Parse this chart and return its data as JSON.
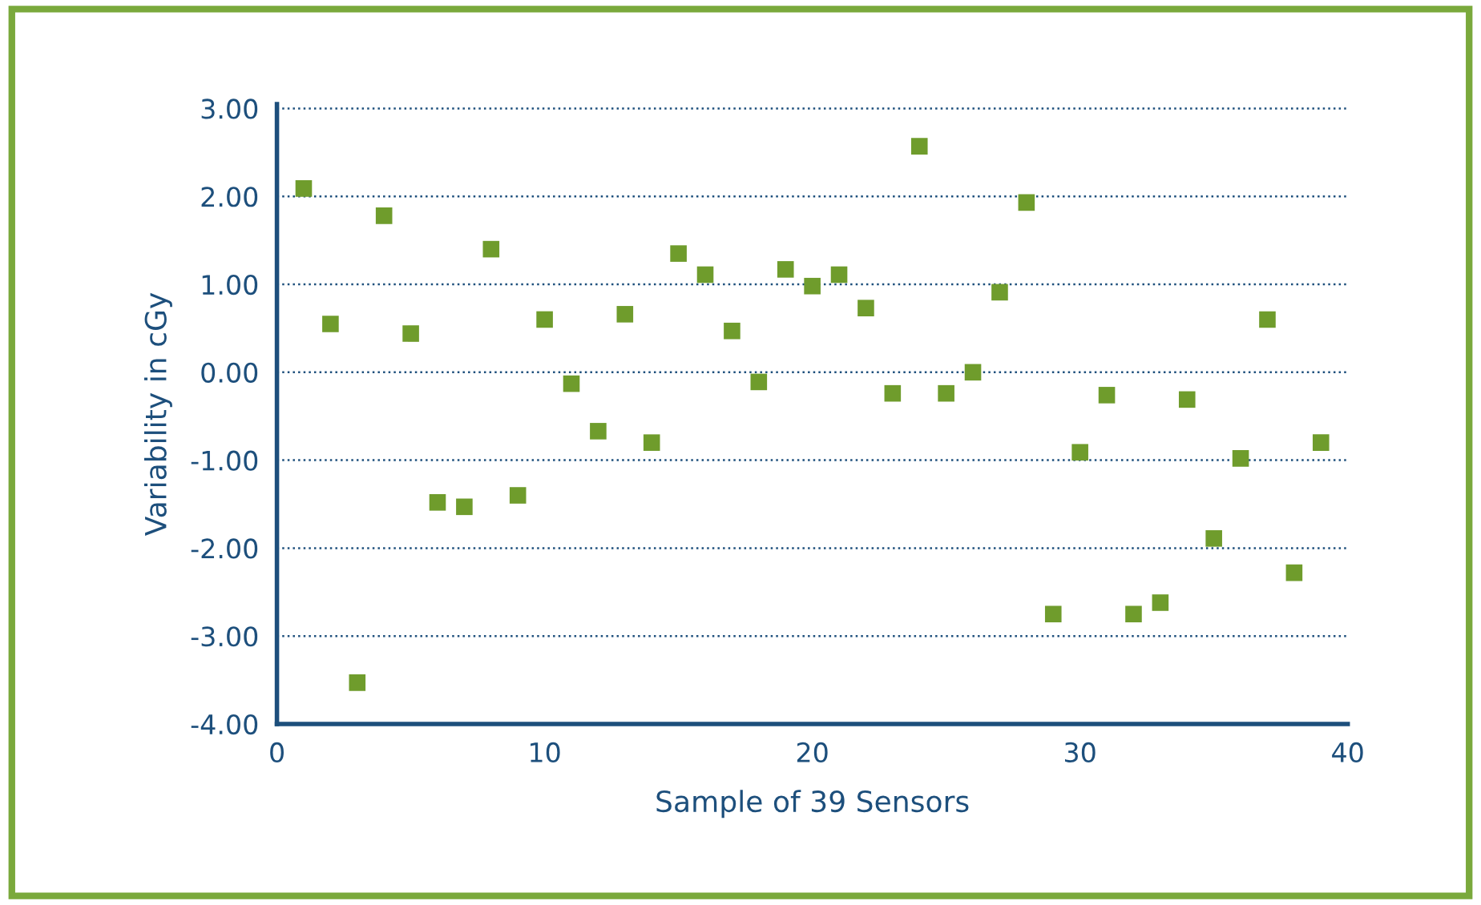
{
  "chart_data": {
    "type": "scatter",
    "xlabel": "Sample of 39 Sensors",
    "ylabel": "Variability in cGy",
    "x": [
      1,
      2,
      3,
      4,
      5,
      6,
      7,
      8,
      9,
      10,
      11,
      12,
      13,
      14,
      15,
      16,
      17,
      18,
      19,
      20,
      21,
      22,
      23,
      24,
      25,
      26,
      27,
      28,
      29,
      30,
      31,
      32,
      33,
      34,
      35,
      36,
      37,
      38,
      39
    ],
    "series": [
      {
        "color": "#6f9c2c",
        "values": [
          2.09,
          0.55,
          -3.53,
          1.78,
          0.44,
          -1.48,
          -1.53,
          1.4,
          -1.4,
          0.6,
          -0.13,
          -0.67,
          0.66,
          -0.8,
          1.35,
          1.11,
          0.47,
          -0.11,
          1.17,
          0.98,
          1.11,
          0.73,
          -0.24,
          2.57,
          -0.24,
          0.0,
          0.91,
          1.93,
          -2.75,
          -0.91,
          -0.26,
          -2.75,
          -2.62,
          -0.31,
          -1.89,
          -0.98,
          0.6,
          -2.28,
          -0.8
        ]
      }
    ],
    "xlim": [
      0,
      40
    ],
    "xticks": [
      0,
      10,
      20,
      30,
      40
    ],
    "ylim": [
      -4,
      3.05
    ],
    "yticks": [
      {
        "value": -4,
        "label": "-4.00"
      },
      {
        "value": -3,
        "label": "-3.00"
      },
      {
        "value": -2,
        "label": "-2.00"
      },
      {
        "value": -1,
        "label": "-1.00"
      },
      {
        "value": 0,
        "label": "0.00"
      },
      {
        "value": 1,
        "label": "1.00"
      },
      {
        "value": 2,
        "label": "2.00"
      },
      {
        "value": 3,
        "label": "3.00"
      }
    ],
    "grid": "y",
    "marker": "square"
  }
}
